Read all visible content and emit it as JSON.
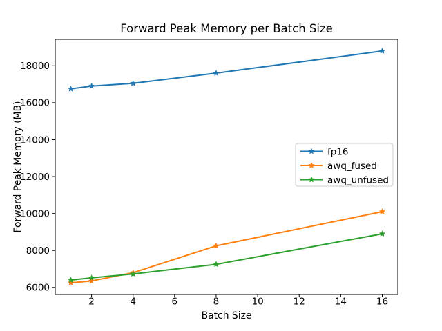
{
  "figure": {
    "background": "#ffffff"
  },
  "chart_data": {
    "type": "line",
    "title": "Forward Peak Memory per Batch Size",
    "xlabel": "Batch Size",
    "ylabel": "Forward Peak Memory (MB)",
    "x": [
      1,
      2,
      4,
      8,
      16
    ],
    "series": [
      {
        "name": "fp16",
        "color": "#1f77b4",
        "values": [
          16750,
          16900,
          17050,
          17600,
          18800
        ]
      },
      {
        "name": "awq_fused",
        "color": "#ff7f0e",
        "values": [
          6250,
          6350,
          6800,
          8250,
          10100
        ]
      },
      {
        "name": "awq_unfused",
        "color": "#2ca02c",
        "values": [
          6400,
          6520,
          6730,
          7250,
          8900
        ]
      }
    ],
    "xticks": [
      2,
      4,
      6,
      8,
      10,
      12,
      14,
      16
    ],
    "yticks": [
      6000,
      8000,
      10000,
      12000,
      14000,
      16000,
      18000
    ],
    "xlim": [
      0.25,
      16.75
    ],
    "ylim": [
      5620,
      19430
    ],
    "marker": "star",
    "grid": false,
    "legend_position": "center right",
    "axis_color": "#000000",
    "legend_border_color": "#cccccc"
  }
}
